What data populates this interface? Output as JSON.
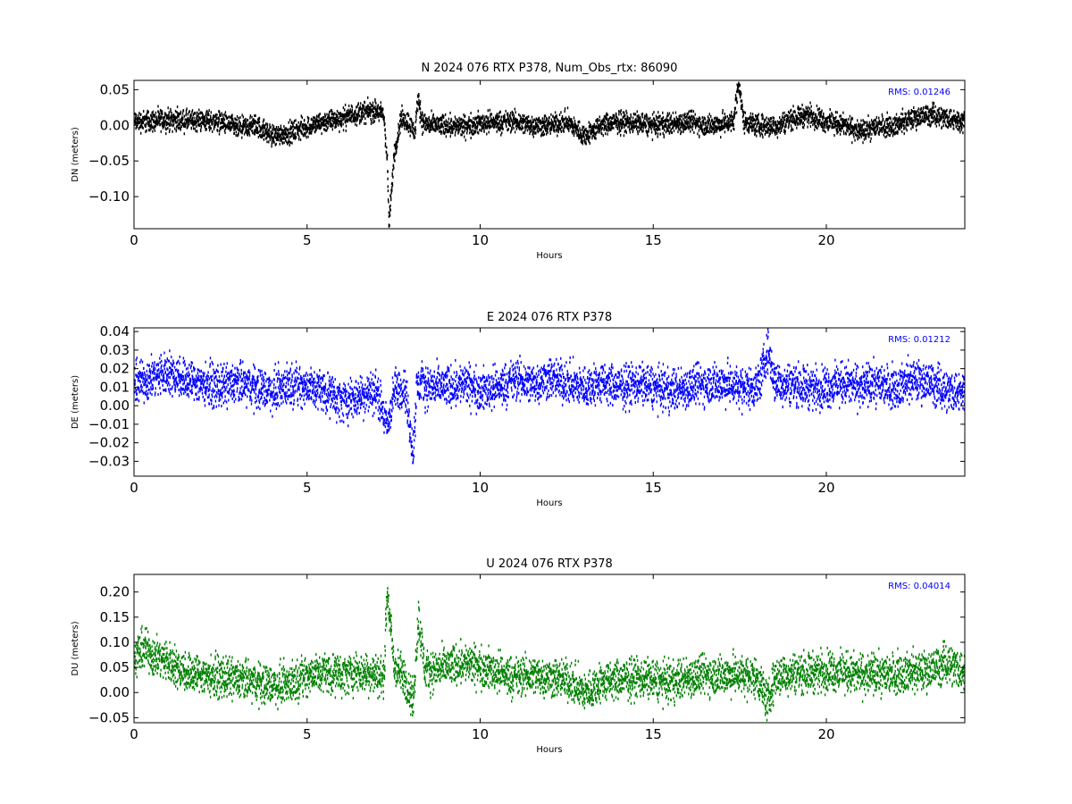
{
  "chart_data": [
    {
      "type": "scatter",
      "title": "N 2024 076 RTX  P378, Num_Obs_rtx: 86090",
      "xlabel": "Hours",
      "ylabel": "DN (meters)",
      "xlim": [
        0,
        24
      ],
      "ylim": [
        -0.145,
        0.063
      ],
      "xticks": [
        0,
        5,
        10,
        15,
        20
      ],
      "xtick_labels": [
        "0",
        "5",
        "10",
        "15",
        "20"
      ],
      "yticks": [
        0.05,
        0.0,
        -0.05,
        -0.1
      ],
      "ytick_labels": [
        "0.05",
        "0.00",
        "−0.05",
        "−0.10"
      ],
      "grid": false,
      "color": "#000000",
      "annotation": "RMS:  0.01246",
      "annotation_color": "#0000ff",
      "series": [
        {
          "x": [
            0,
            0.5,
            1,
            1.5,
            2,
            2.5,
            3,
            3.5,
            4,
            4.5,
            5,
            5.5,
            6,
            6.5,
            7,
            7.2,
            7.3,
            7.35,
            7.5,
            7.7,
            7.9,
            8.1,
            8.2,
            8.3,
            8.5,
            9,
            9.5,
            10,
            10.5,
            11,
            11.5,
            12,
            12.5,
            13,
            13.5,
            14,
            14.5,
            15,
            15.5,
            16,
            16.5,
            17,
            17.3,
            17.45,
            17.6,
            18,
            18.5,
            19,
            19.5,
            20,
            20.5,
            21,
            21.5,
            22,
            22.5,
            23,
            23.5,
            24
          ],
          "y": [
            0.005,
            0.006,
            0.008,
            0.006,
            0.007,
            0.005,
            -0.005,
            0.0,
            -0.015,
            -0.01,
            -0.002,
            0.005,
            0.01,
            0.018,
            0.02,
            0.015,
            -0.05,
            -0.14,
            -0.04,
            0.01,
            0.005,
            -0.01,
            0.04,
            0.005,
            0.0,
            0.0,
            -0.002,
            0.003,
            0.005,
            0.005,
            0.0,
            0.0,
            0.005,
            -0.015,
            0.0,
            0.005,
            0.003,
            0.0,
            0.002,
            0.005,
            0.0,
            0.002,
            0.005,
            0.06,
            0.005,
            0.0,
            -0.002,
            0.01,
            0.015,
            0.005,
            0.0,
            -0.01,
            0.0,
            0.0,
            0.01,
            0.015,
            0.01,
            0.005
          ],
          "spread": 0.012
        }
      ]
    },
    {
      "type": "scatter",
      "title": "E 2024 076 RTX  P378",
      "xlabel": "Hours",
      "ylabel": "DE (meters)",
      "xlim": [
        0,
        24
      ],
      "ylim": [
        -0.038,
        0.042
      ],
      "xticks": [
        0,
        5,
        10,
        15,
        20
      ],
      "xtick_labels": [
        "0",
        "5",
        "10",
        "15",
        "20"
      ],
      "yticks": [
        0.04,
        0.03,
        0.02,
        0.01,
        0.0,
        -0.01,
        -0.02,
        -0.03
      ],
      "ytick_labels": [
        "0.04",
        "0.03",
        "0.02",
        "0.01",
        "0.00",
        "−0.01",
        "−0.02",
        "−0.03"
      ],
      "grid": false,
      "color": "#0000ff",
      "annotation": "RMS:  0.01212",
      "annotation_color": "#0000ff",
      "series": [
        {
          "x": [
            0,
            0.5,
            1,
            1.5,
            2,
            2.5,
            3,
            3.5,
            4,
            4.5,
            5,
            5.5,
            6,
            6.5,
            7,
            7.3,
            7.5,
            7.8,
            8.05,
            8.15,
            8.3,
            8.5,
            9,
            9.5,
            10,
            10.5,
            11,
            11.5,
            12,
            12.5,
            13,
            13.5,
            14,
            14.5,
            15,
            15.5,
            16,
            16.5,
            17,
            17.5,
            18,
            18.3,
            18.5,
            19,
            19.5,
            20,
            20.5,
            21,
            21.5,
            22,
            22.5,
            23,
            23.5,
            24
          ],
          "y": [
            0.012,
            0.015,
            0.018,
            0.014,
            0.012,
            0.01,
            0.012,
            0.01,
            0.008,
            0.012,
            0.01,
            0.008,
            0.002,
            0.005,
            0.008,
            -0.012,
            0.008,
            0.01,
            -0.025,
            0.01,
            0.012,
            0.01,
            0.01,
            0.012,
            0.008,
            0.01,
            0.014,
            0.012,
            0.015,
            0.012,
            0.01,
            0.012,
            0.01,
            0.012,
            0.01,
            0.008,
            0.01,
            0.012,
            0.012,
            0.01,
            0.01,
            0.03,
            0.012,
            0.012,
            0.01,
            0.01,
            0.012,
            0.01,
            0.012,
            0.01,
            0.014,
            0.012,
            0.008,
            0.008
          ],
          "spread": 0.009
        }
      ]
    },
    {
      "type": "scatter",
      "title": "U 2024 076 RTX  P378",
      "xlabel": "Hours",
      "ylabel": "DU (meters)",
      "xlim": [
        0,
        24
      ],
      "ylim": [
        -0.06,
        0.235
      ],
      "xticks": [
        0,
        5,
        10,
        15,
        20
      ],
      "xtick_labels": [
        "0",
        "5",
        "10",
        "15",
        "20"
      ],
      "yticks": [
        0.2,
        0.15,
        0.1,
        0.05,
        0.0,
        -0.05
      ],
      "ytick_labels": [
        "0.20",
        "0.15",
        "0.10",
        "0.05",
        "0.00",
        "−0.05"
      ],
      "grid": false,
      "color": "#008000",
      "annotation": "RMS:  0.04014",
      "annotation_color": "#0000ff",
      "series": [
        {
          "x": [
            0,
            0.3,
            0.5,
            1,
            1.5,
            2,
            2.5,
            3,
            3.5,
            4,
            4.5,
            5,
            5.5,
            6,
            6.5,
            7,
            7.2,
            7.3,
            7.5,
            7.8,
            8.05,
            8.2,
            8.4,
            9,
            9.5,
            10,
            10.5,
            11,
            11.5,
            12,
            12.5,
            13,
            13.5,
            14,
            14.5,
            15,
            15.5,
            16,
            16.5,
            17,
            17.5,
            18,
            18.3,
            18.5,
            19,
            19.5,
            20,
            20.5,
            21,
            21.5,
            22,
            22.5,
            23,
            23.5,
            24
          ],
          "y": [
            0.07,
            0.09,
            0.075,
            0.06,
            0.04,
            0.035,
            0.03,
            0.025,
            0.02,
            0.015,
            0.02,
            0.035,
            0.04,
            0.035,
            0.04,
            0.035,
            0.03,
            0.2,
            0.05,
            0.03,
            -0.02,
            0.15,
            0.04,
            0.05,
            0.06,
            0.05,
            0.04,
            0.03,
            0.035,
            0.03,
            0.025,
            0.0,
            0.02,
            0.025,
            0.03,
            0.025,
            0.02,
            0.03,
            0.035,
            0.035,
            0.035,
            0.03,
            -0.02,
            0.03,
            0.04,
            0.04,
            0.045,
            0.04,
            0.035,
            0.035,
            0.04,
            0.04,
            0.045,
            0.06,
            0.04
          ],
          "spread": 0.032
        }
      ]
    }
  ]
}
